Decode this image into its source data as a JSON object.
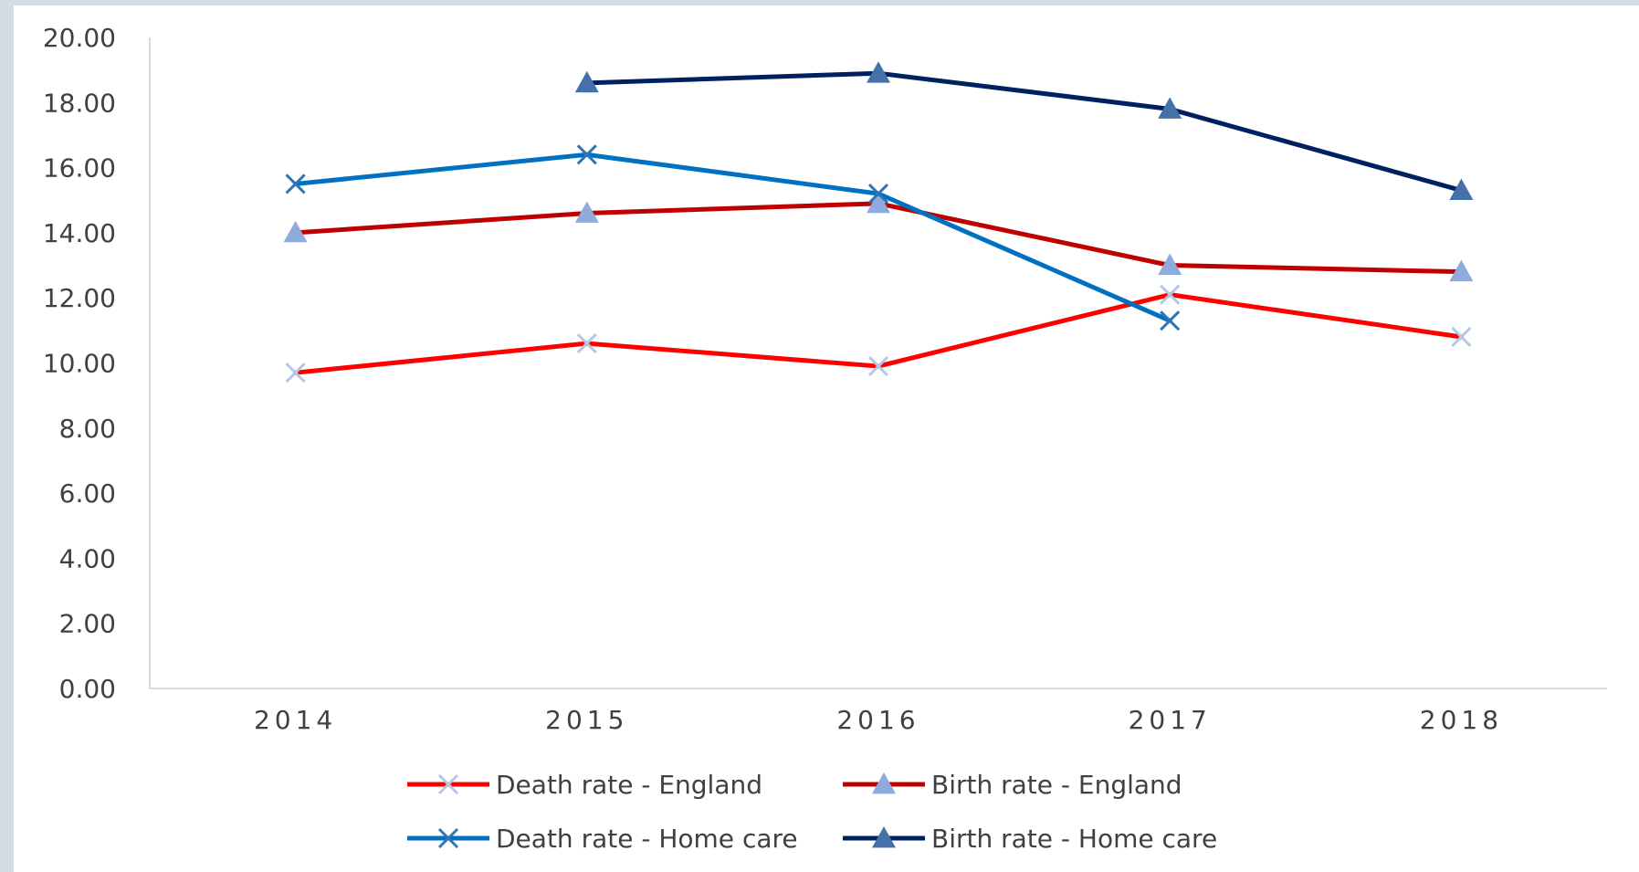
{
  "chart_data": {
    "type": "line",
    "title": "",
    "xlabel": "",
    "ylabel": "",
    "categories": [
      "2014",
      "2015",
      "2016",
      "2017",
      "2018"
    ],
    "ylim": [
      0,
      20
    ],
    "yticks": [
      "0.00",
      "2.00",
      "4.00",
      "6.00",
      "8.00",
      "10.00",
      "12.00",
      "14.00",
      "16.00",
      "18.00",
      "20.00"
    ],
    "grid": false,
    "legend_position": "bottom",
    "series": [
      {
        "name": "Death rate - England",
        "color": "#ff0000",
        "marker": "x",
        "marker_color": "#b4c7e7",
        "values": [
          9.7,
          10.6,
          9.9,
          12.1,
          10.8
        ]
      },
      {
        "name": "Birth rate - England",
        "color": "#c00000",
        "marker": "triangle",
        "marker_color": "#8faadc",
        "values": [
          14.0,
          14.6,
          14.9,
          13.0,
          12.8
        ]
      },
      {
        "name": "Death rate - Home care",
        "color": "#0070c0",
        "marker": "x",
        "marker_color": "#2e75b6",
        "values": [
          15.5,
          16.4,
          15.2,
          11.3,
          null
        ]
      },
      {
        "name": "Birth rate - Home care",
        "color": "#002060",
        "marker": "triangle",
        "marker_color": "#4472a8",
        "values": [
          null,
          18.6,
          18.9,
          17.8,
          15.3
        ]
      }
    ]
  }
}
